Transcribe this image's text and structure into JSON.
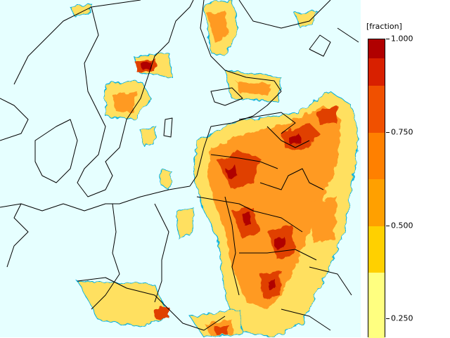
{
  "legend": {
    "title": "[fraction]",
    "ticks": [
      {
        "value": 1.0,
        "label": "1.000"
      },
      {
        "value": 0.75,
        "label": "0.750"
      },
      {
        "value": 0.5,
        "label": "0.500"
      },
      {
        "value": 0.25,
        "label": "0.250"
      }
    ],
    "value_min": 0.2,
    "value_max": 1.0,
    "bands": [
      {
        "from": 0.2,
        "to": 0.25,
        "color": "#ffff80"
      },
      {
        "from": 0.25,
        "to": 0.375,
        "color": "#ffff80"
      },
      {
        "from": 0.375,
        "to": 0.5,
        "color": "#ffd000"
      },
      {
        "from": 0.5,
        "to": 0.625,
        "color": "#ffa000"
      },
      {
        "from": 0.625,
        "to": 0.75,
        "color": "#ff8000"
      },
      {
        "from": 0.75,
        "to": 0.875,
        "color": "#f05000"
      },
      {
        "from": 0.875,
        "to": 0.95,
        "color": "#d82000"
      },
      {
        "from": 0.95,
        "to": 1.0,
        "color": "#b00000"
      }
    ]
  },
  "colors": {
    "background": "#e6ffff",
    "coastline": "#000000",
    "contour": "#00b0e0",
    "low": "#ffe060",
    "mid": "#ff9a20",
    "high": "#e04000",
    "peak": "#b00000"
  }
}
